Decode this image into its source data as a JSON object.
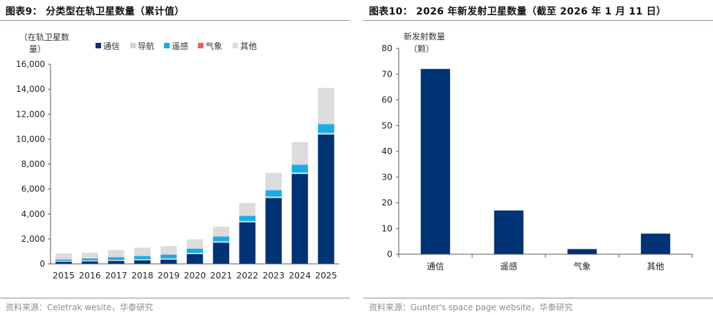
{
  "left": {
    "title": "图表9：  分类型在轨卫星数量（累计值）",
    "source": "资料来源：Celetrak wesite，华泰研究",
    "ylabel_line1": "（在轨卫星数",
    "ylabel_line2": "量）",
    "legend": [
      {
        "name": "通信",
        "color": "#003374"
      },
      {
        "name": "导航",
        "color": "#d3d3d3"
      },
      {
        "name": "遥感",
        "color": "#17aee8"
      },
      {
        "name": "气象",
        "color": "#f05a66"
      },
      {
        "name": "其他",
        "color": "#dcdcdc"
      }
    ],
    "chart_data": {
      "type": "bar",
      "stacked": true,
      "categories": [
        "2015",
        "2016",
        "2017",
        "2018",
        "2019",
        "2020",
        "2021",
        "2022",
        "2023",
        "2024",
        "2025"
      ],
      "series": [
        {
          "name": "通信",
          "color": "#003374",
          "values": [
            170,
            200,
            240,
            280,
            340,
            780,
            1700,
            3330,
            5280,
            7200,
            10370
          ]
        },
        {
          "name": "导航",
          "color": "#d3d3d3",
          "values": [
            80,
            85,
            90,
            95,
            100,
            105,
            110,
            115,
            120,
            125,
            130
          ]
        },
        {
          "name": "遥感",
          "color": "#17aee8",
          "values": [
            100,
            150,
            200,
            250,
            300,
            330,
            380,
            400,
            500,
            620,
            700
          ]
        },
        {
          "name": "气象",
          "color": "#f05a66",
          "values": [
            10,
            10,
            10,
            10,
            10,
            10,
            10,
            10,
            10,
            10,
            10
          ]
        },
        {
          "name": "其他",
          "color": "#dcdcdc",
          "values": [
            470,
            450,
            580,
            670,
            680,
            740,
            790,
            1030,
            1380,
            1805,
            2890
          ]
        }
      ],
      "ylim": [
        0,
        16000
      ],
      "yticks": [
        "0",
        "2,000",
        "4,000",
        "6,000",
        "8,000",
        "10,000",
        "12,000",
        "14,000",
        "16,000"
      ],
      "grid": false,
      "legend_position": "top"
    }
  },
  "right": {
    "title": "图表10：  2026 年新发射卫星数量（截至 2026 年 1 月 11 日）",
    "source": "资料来源：Gunter's space page website，华泰研究",
    "ylabel_line1": "新发射数量",
    "ylabel_line2": "（颗）",
    "chart_data": {
      "type": "bar",
      "categories": [
        "通信",
        "遥感",
        "气象",
        "其他"
      ],
      "values": [
        72,
        17,
        2,
        8
      ],
      "color": "#003374",
      "ylim": [
        0,
        80
      ],
      "yticks": [
        "0",
        "10",
        "20",
        "30",
        "40",
        "50",
        "60",
        "70",
        "80"
      ],
      "grid": false
    }
  }
}
